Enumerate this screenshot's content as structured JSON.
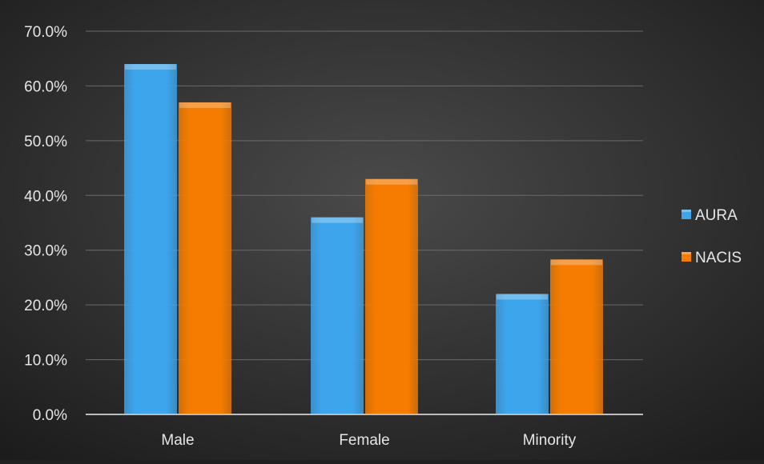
{
  "chart_data": {
    "type": "bar",
    "categories": [
      "Male",
      "Female",
      "Minority"
    ],
    "series": [
      {
        "name": "AURA",
        "values": [
          64.0,
          36.0,
          22.0
        ],
        "color": "#3da5ec"
      },
      {
        "name": "NACIS",
        "values": [
          57.0,
          43.0,
          28.3
        ],
        "color": "#f57c00"
      }
    ],
    "y_ticks": [
      "0.0%",
      "10.0%",
      "20.0%",
      "30.0%",
      "40.0%",
      "50.0%",
      "60.0%",
      "70.0%"
    ],
    "ylim": [
      0,
      70
    ],
    "grid": true,
    "legend_position": "right"
  },
  "colors": {
    "background_center": "#4a4a4a",
    "background_edge": "#1c1c1c",
    "gridline": "#6a6a6a",
    "axis_line": "#bdbdbd",
    "label_text": "#e6e6e6"
  }
}
